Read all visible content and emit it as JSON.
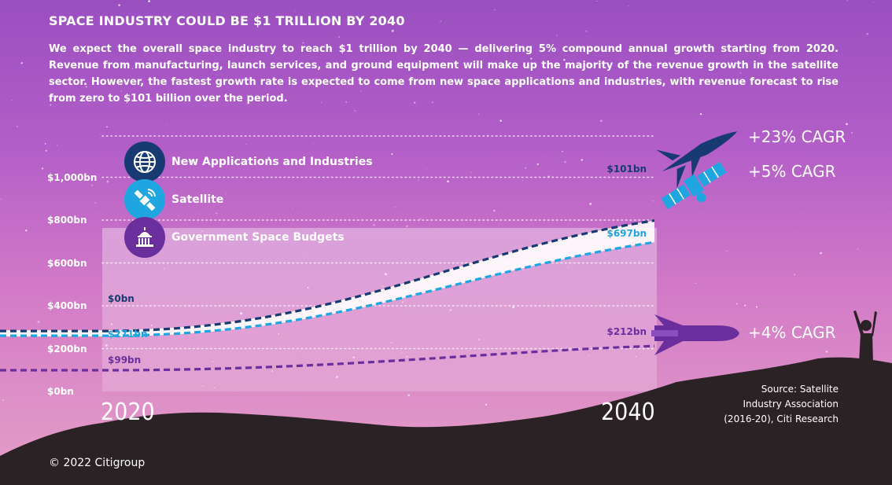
{
  "header": {
    "title": "SPACE INDUSTRY COULD BE $1 TRILLION BY 2040",
    "body": "We expect the overall space industry to reach $1 trillion by 2040 — delivering 5% compound annual growth starting from 2020. Revenue from manufacturing, launch services, and ground equipment will make up the majority of the revenue growth in the satellite sector. However, the fastest growth rate is expected to come from new space applications and industries, with revenue forecast to rise from zero to $101 billion over the period."
  },
  "legend": [
    {
      "label": "New Applications and Industries",
      "color": "#173a73",
      "icon": "globe-icon"
    },
    {
      "label": "Satellite",
      "color": "#1fa6e0",
      "icon": "satellite-icon"
    },
    {
      "label": "Government Space Budgets",
      "color": "#6a2f9c",
      "icon": "capitol-icon"
    }
  ],
  "chart_data": {
    "type": "line",
    "title": "SPACE INDUSTRY COULD BE $1 TRILLION BY 2040",
    "x": [
      2020,
      2040
    ],
    "x_tick_labels": [
      "2020",
      "2040"
    ],
    "y_tick_labels": [
      "$0bn",
      "$200bn",
      "$400bn",
      "$600bn",
      "$800bn",
      "$1,000bn"
    ],
    "y_ticks": [
      0,
      200,
      400,
      600,
      800,
      1000
    ],
    "ylim": [
      0,
      1000
    ],
    "grid": "dotted horizontal",
    "legend_position": "top-left",
    "series": [
      {
        "name": "New Applications and Industries",
        "values": [
          0,
          101
        ],
        "start_label": "$0bn",
        "end_label": "$101bn",
        "cagr": "+23% CAGR",
        "color": "#173a73",
        "icon": "rocket-icon"
      },
      {
        "name": "Satellite",
        "values": [
          271,
          697
        ],
        "start_label": "$271bn",
        "end_label": "$697bn",
        "cagr": "+5% CAGR",
        "color": "#1fa6e0",
        "icon": "satellite-icon"
      },
      {
        "name": "Government Space Budgets",
        "values": [
          99,
          212
        ],
        "start_label": "$99bn",
        "end_label": "$212bn",
        "cagr": "+4% CAGR",
        "color": "#6a2f9c",
        "icon": "launch-rocket-icon"
      }
    ]
  },
  "footer": {
    "source_lines": [
      "Source: Satellite",
      "Industry Association",
      "(2016-20), Citi Research"
    ],
    "copyright": "© 2022 Citigroup"
  }
}
